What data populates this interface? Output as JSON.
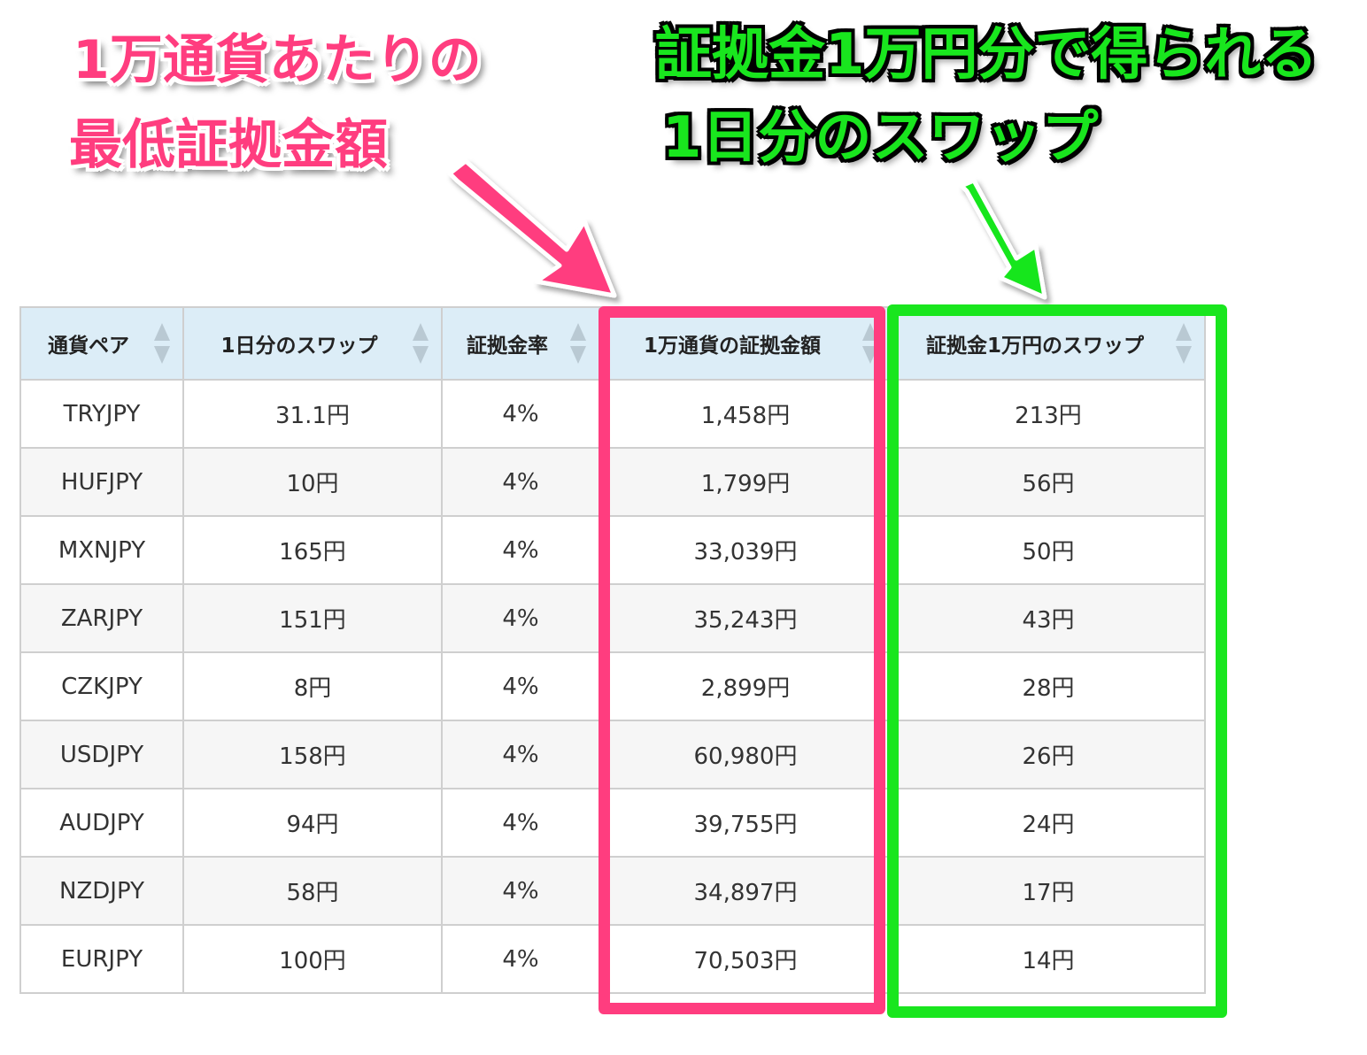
{
  "annotations": {
    "pink": {
      "line1": "1万通貨あたりの",
      "line2": "最低証拠金額",
      "color": "#ff3d7f"
    },
    "green": {
      "line1": "証拠金1万円分で得られる",
      "line2": "1日分のスワップ",
      "color": "#19e61e"
    }
  },
  "table": {
    "headers": [
      {
        "label": "通貨ペア",
        "sort_icon": "sort-icon"
      },
      {
        "label": "1日分のスワップ",
        "sort_icon": "sort-icon"
      },
      {
        "label": "証拠金率",
        "sort_icon": "sort-icon"
      },
      {
        "label": "1万通貨の証拠金額",
        "sort_icon": "sort-icon"
      },
      {
        "label": "証拠金1万円のスワップ",
        "sort_icon": "sort-icon"
      }
    ],
    "rows": [
      {
        "pair": "TRYJPY",
        "daily_swap": "31.1円",
        "margin_rate": "4%",
        "margin_amount": "1,458円",
        "swap_per_10k": "213円"
      },
      {
        "pair": "HUFJPY",
        "daily_swap": "10円",
        "margin_rate": "4%",
        "margin_amount": "1,799円",
        "swap_per_10k": "56円"
      },
      {
        "pair": "MXNJPY",
        "daily_swap": "165円",
        "margin_rate": "4%",
        "margin_amount": "33,039円",
        "swap_per_10k": "50円"
      },
      {
        "pair": "ZARJPY",
        "daily_swap": "151円",
        "margin_rate": "4%",
        "margin_amount": "35,243円",
        "swap_per_10k": "43円"
      },
      {
        "pair": "CZKJPY",
        "daily_swap": "8円",
        "margin_rate": "4%",
        "margin_amount": "2,899円",
        "swap_per_10k": "28円"
      },
      {
        "pair": "USDJPY",
        "daily_swap": "158円",
        "margin_rate": "4%",
        "margin_amount": "60,980円",
        "swap_per_10k": "26円"
      },
      {
        "pair": "AUDJPY",
        "daily_swap": "94円",
        "margin_rate": "4%",
        "margin_amount": "39,755円",
        "swap_per_10k": "24円"
      },
      {
        "pair": "NZDJPY",
        "daily_swap": "58円",
        "margin_rate": "4%",
        "margin_amount": "34,897円",
        "swap_per_10k": "17円"
      },
      {
        "pair": "EURJPY",
        "daily_swap": "100円",
        "margin_rate": "4%",
        "margin_amount": "70,503円",
        "swap_per_10k": "14円"
      }
    ]
  },
  "colors": {
    "header_bg": "#dcedf7",
    "highlight_pink": "#ff3d7f",
    "highlight_green": "#19e61e"
  }
}
